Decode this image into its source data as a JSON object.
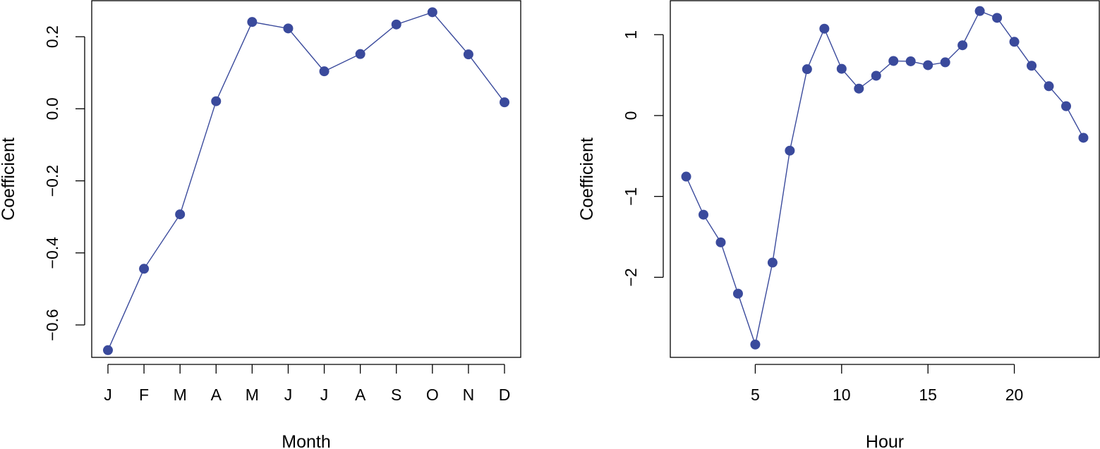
{
  "colors": {
    "series": "#3a4a9c",
    "axis": "#000000",
    "background": "#ffffff"
  },
  "chart_data": [
    {
      "type": "line",
      "xlabel": "Month",
      "ylabel": "Coefficient",
      "x_tick_labels": [
        "J",
        "F",
        "M",
        "A",
        "M",
        "J",
        "J",
        "A",
        "S",
        "O",
        "N",
        "D"
      ],
      "y_ticks": [
        -0.6,
        -0.4,
        -0.2,
        0.0,
        0.2
      ],
      "y_tick_labels": [
        "−0.6",
        "−0.4",
        "−0.2",
        "0.0",
        "0.2"
      ],
      "xlim": [
        0.55,
        12.45
      ],
      "ylim": [
        -0.69,
        0.3
      ],
      "grid": false,
      "legend": "none",
      "markers": "filled-circle",
      "series": [
        {
          "x": [
            1,
            2,
            3,
            4,
            5,
            6,
            7,
            8,
            9,
            10,
            11,
            12
          ],
          "values": [
            -0.67,
            -0.444,
            -0.293,
            0.021,
            0.241,
            0.223,
            0.104,
            0.152,
            0.234,
            0.268,
            0.151,
            0.018
          ]
        }
      ]
    },
    {
      "type": "line",
      "xlabel": "Hour",
      "ylabel": "Coefficient",
      "x_ticks": [
        5,
        10,
        15,
        20
      ],
      "x_tick_labels": [
        "5",
        "10",
        "15",
        "20"
      ],
      "y_ticks": [
        -2,
        -1,
        0,
        1
      ],
      "y_tick_labels": [
        "−2",
        "−1",
        "0",
        "1"
      ],
      "xlim": [
        0.08,
        24.92
      ],
      "ylim": [
        -2.99,
        1.42
      ],
      "grid": false,
      "legend": "none",
      "markers": "filled-circle",
      "series": [
        {
          "x": [
            1,
            2,
            3,
            4,
            5,
            6,
            7,
            8,
            9,
            10,
            11,
            12,
            13,
            14,
            15,
            16,
            17,
            18,
            19,
            20,
            21,
            22,
            23,
            24
          ],
          "values": [
            -0.755,
            -1.226,
            -1.568,
            -2.202,
            -2.831,
            -1.818,
            -0.434,
            0.573,
            1.074,
            0.578,
            0.333,
            0.492,
            0.675,
            0.671,
            0.623,
            0.658,
            0.869,
            1.292,
            1.208,
            0.912,
            0.616,
            0.363,
            0.116,
            -0.275
          ]
        }
      ]
    }
  ]
}
